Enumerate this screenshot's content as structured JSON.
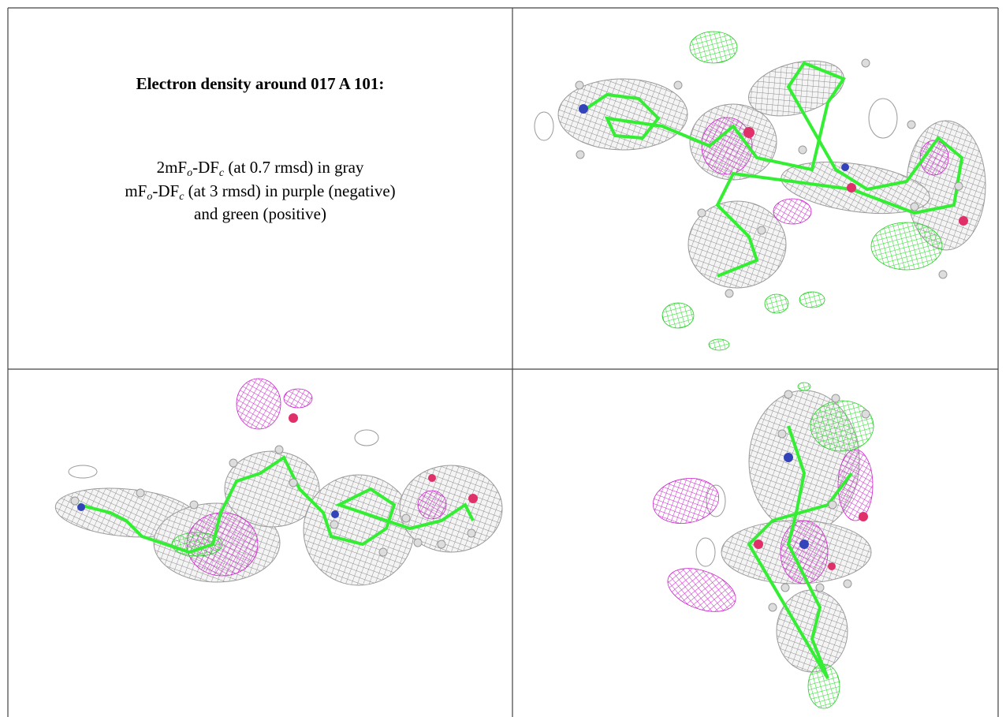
{
  "caption": {
    "title": "Electron density around 017 A 101:",
    "lines": [
      [
        "2mF",
        "o",
        "-DF",
        "c",
        " (at 0.7 rmsd) in gray"
      ],
      [
        "mF",
        "o",
        "-DF",
        "c",
        " (at 3 rmsd) in purple (negative)"
      ],
      [
        "and green (positive)"
      ]
    ]
  }
}
